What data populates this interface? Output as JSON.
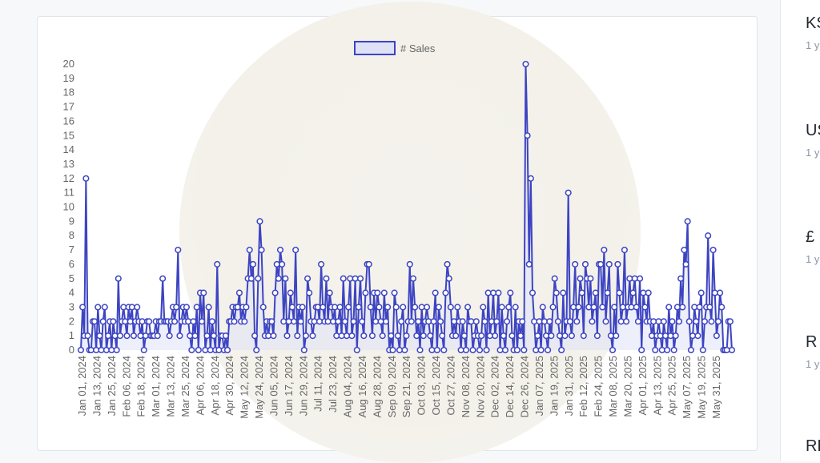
{
  "chart_data": {
    "type": "line",
    "legend": "top-center",
    "series": [
      {
        "name": "# Sales",
        "values": [
          0,
          3,
          1,
          12,
          1,
          0,
          0,
          2,
          2,
          0,
          3,
          1,
          0,
          2,
          3,
          0,
          1,
          2,
          0,
          2,
          1,
          0,
          5,
          1,
          2,
          3,
          2,
          1,
          3,
          2,
          3,
          1,
          2,
          3,
          2,
          1,
          2,
          0,
          1,
          2,
          2,
          1,
          1,
          1,
          2,
          1,
          2,
          2,
          5,
          2,
          2,
          2,
          1,
          2,
          3,
          2,
          3,
          7,
          1,
          2,
          3,
          2,
          3,
          2,
          1,
          0,
          2,
          1,
          3,
          0,
          4,
          2,
          4,
          0,
          1,
          3,
          0,
          2,
          1,
          0,
          6,
          0,
          1,
          1,
          0,
          1,
          0,
          2,
          2,
          3,
          2,
          3,
          3,
          4,
          2,
          3,
          2,
          3,
          5,
          7,
          5,
          6,
          1,
          0,
          5,
          9,
          7,
          3,
          1,
          2,
          1,
          2,
          2,
          1,
          4,
          6,
          5,
          7,
          6,
          2,
          5,
          1,
          2,
          4,
          3,
          2,
          7,
          1,
          3,
          2,
          3,
          0,
          1,
          5,
          4,
          2,
          1,
          2,
          3,
          3,
          2,
          6,
          3,
          2,
          5,
          2,
          4,
          3,
          2,
          3,
          1,
          2,
          3,
          1,
          5,
          2,
          1,
          3,
          5,
          1,
          2,
          5,
          0,
          3,
          5,
          2,
          1,
          4,
          6,
          6,
          3,
          1,
          4,
          2,
          4,
          3,
          2,
          1,
          4,
          2,
          3,
          0,
          1,
          0,
          4,
          3,
          1,
          0,
          2,
          3,
          0,
          1,
          2,
          6,
          2,
          5,
          3,
          1,
          2,
          0,
          3,
          1,
          2,
          3,
          2,
          1,
          0,
          2,
          4,
          0,
          3,
          2,
          1,
          0,
          4,
          6,
          5,
          3,
          1,
          2,
          1,
          3,
          2,
          0,
          2,
          1,
          0,
          3,
          2,
          2,
          0,
          1,
          2,
          1,
          0,
          1,
          3,
          2,
          0,
          4,
          1,
          2,
          4,
          1,
          2,
          4,
          0,
          3,
          1,
          0,
          2,
          3,
          4,
          1,
          0,
          3,
          0,
          2,
          1,
          2,
          0,
          20,
          15,
          6,
          12,
          4,
          2,
          0,
          1,
          2,
          0,
          3,
          2,
          1,
          0,
          2,
          1,
          3,
          5,
          4,
          2,
          1,
          0,
          4,
          1,
          2,
          11,
          2,
          1,
          3,
          6,
          2,
          3,
          5,
          4,
          1,
          6,
          5,
          3,
          5,
          2,
          3,
          4,
          1,
          6,
          6,
          3,
          7,
          2,
          4,
          6,
          1,
          0,
          3,
          1,
          6,
          4,
          2,
          3,
          7,
          2,
          3,
          5,
          3,
          4,
          5,
          3,
          2,
          5,
          0,
          4,
          3,
          2,
          4,
          2,
          1,
          2,
          0,
          1,
          2,
          1,
          0,
          2,
          1,
          0,
          3,
          1,
          2,
          0,
          1,
          3,
          2,
          5,
          3,
          7,
          6,
          9,
          2,
          0,
          1,
          3,
          2,
          1,
          3,
          4,
          0,
          2,
          3,
          8,
          3,
          2,
          7,
          4,
          1,
          2,
          4,
          3,
          0,
          0,
          0,
          2,
          2,
          0
        ]
      }
    ],
    "x_tick_labels": [
      "Jan 01, 2024",
      "Jan 13, 2024",
      "Jan 25, 2024",
      "Feb 06, 2024",
      "Feb 18, 2024",
      "Mar 01, 2024",
      "Mar 13, 2024",
      "Mar 25, 2024",
      "Apr 06, 2024",
      "Apr 18, 2024",
      "Apr 30, 2024",
      "May 12, 2024",
      "May 24, 2024",
      "Jun 05, 2024",
      "Jun 17, 2024",
      "Jun 29, 2024",
      "Jul 11, 2024",
      "Jul 23, 2024",
      "Aug 04, 2024",
      "Aug 16, 2024",
      "Aug 28, 2024",
      "Sep 09, 2024",
      "Sep 21, 2024",
      "Oct 03, 2024",
      "Oct 15, 2024",
      "Oct 27, 2024",
      "Nov 08, 2024",
      "Nov 20, 2024",
      "Dec 02, 2024",
      "Dec 14, 2024",
      "Dec 26, 2024",
      "Jan 07, 2025",
      "Jan 19, 2025",
      "Jan 31, 2025",
      "Feb 12, 2025",
      "Feb 24, 2025",
      "Mar 08, 2025",
      "Mar 20, 2025",
      "Apr 01, 2025",
      "Apr 13, 2025",
      "Apr 25, 2025",
      "May 07, 2025",
      "May 19, 2025",
      "May 31, 2025"
    ],
    "y_ticks": [
      0,
      1,
      2,
      3,
      4,
      5,
      6,
      7,
      8,
      9,
      10,
      11,
      12,
      13,
      14,
      15,
      16,
      17,
      18,
      19,
      20
    ],
    "ylim": [
      0,
      20
    ],
    "grid": false,
    "colors": {
      "line": "#3d44c2",
      "fill": "#dfe1f6",
      "point_fill": "#ffffff"
    }
  },
  "side_panel": {
    "items": [
      {
        "title": "KS",
        "sub": "1 y"
      },
      {
        "title": "US",
        "sub": "1 y"
      },
      {
        "title": "£",
        "sub": "1 y"
      },
      {
        "title": "R",
        "sub": "1 y"
      },
      {
        "title": "RE",
        "sub": ""
      }
    ]
  }
}
